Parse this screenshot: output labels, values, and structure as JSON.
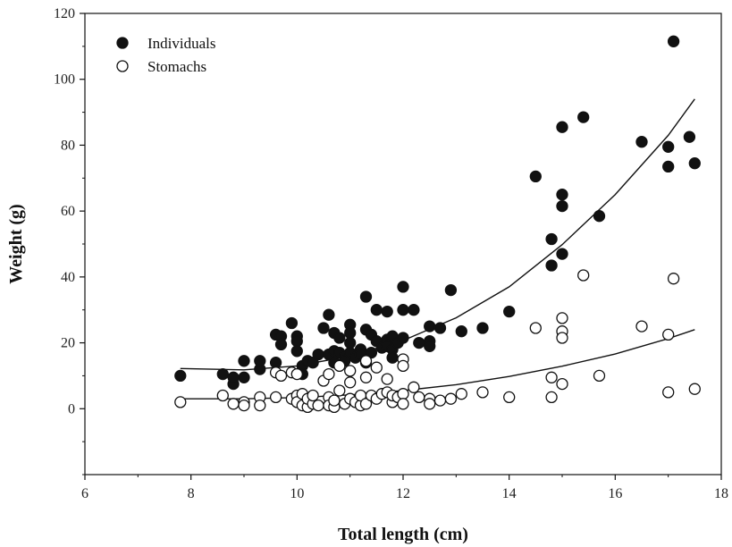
{
  "chart_data": {
    "type": "scatter",
    "title": "",
    "xlabel": "Total length (cm)",
    "ylabel": "Weight (g)",
    "xlim": [
      6,
      18
    ],
    "ylim": [
      -20,
      120
    ],
    "xticks": [
      6,
      8,
      10,
      12,
      14,
      16,
      18
    ],
    "yticks": [
      0,
      20,
      40,
      60,
      80,
      100,
      120
    ],
    "grid": false,
    "legend_position": "top-left",
    "series": [
      {
        "name": "Individuals",
        "marker": "filled-circle",
        "color": "#111111",
        "points": [
          [
            7.8,
            10
          ],
          [
            8.6,
            10.5
          ],
          [
            8.8,
            7.5
          ],
          [
            8.8,
            9.5
          ],
          [
            9.0,
            9.5
          ],
          [
            9.0,
            14.5
          ],
          [
            9.3,
            12
          ],
          [
            9.3,
            14.5
          ],
          [
            9.6,
            14
          ],
          [
            9.6,
            22.5
          ],
          [
            9.7,
            22
          ],
          [
            9.7,
            19.5
          ],
          [
            9.9,
            26
          ],
          [
            10.0,
            22
          ],
          [
            10.0,
            20.5
          ],
          [
            10.0,
            17.5
          ],
          [
            10.1,
            13
          ],
          [
            10.1,
            10.5
          ],
          [
            10.2,
            14.5
          ],
          [
            10.3,
            14
          ],
          [
            10.4,
            16.5
          ],
          [
            10.5,
            24.5
          ],
          [
            10.6,
            28.5
          ],
          [
            10.6,
            16.5
          ],
          [
            10.7,
            23
          ],
          [
            10.7,
            17.5
          ],
          [
            10.7,
            14
          ],
          [
            10.8,
            21.5
          ],
          [
            10.8,
            17
          ],
          [
            10.9,
            16
          ],
          [
            10.9,
            14.5
          ],
          [
            11.0,
            25.5
          ],
          [
            11.0,
            23
          ],
          [
            11.0,
            20
          ],
          [
            11.0,
            17
          ],
          [
            11.1,
            15.5
          ],
          [
            11.2,
            18
          ],
          [
            11.2,
            16.5
          ],
          [
            11.3,
            34
          ],
          [
            11.3,
            24
          ],
          [
            11.3,
            14
          ],
          [
            11.4,
            22.5
          ],
          [
            11.4,
            17
          ],
          [
            11.5,
            30
          ],
          [
            11.5,
            20.5
          ],
          [
            11.6,
            18.5
          ],
          [
            11.7,
            29.5
          ],
          [
            11.7,
            21
          ],
          [
            11.7,
            19
          ],
          [
            11.8,
            22
          ],
          [
            11.8,
            18
          ],
          [
            11.8,
            15.5
          ],
          [
            11.9,
            20
          ],
          [
            12.0,
            37
          ],
          [
            12.0,
            30
          ],
          [
            12.0,
            21.5
          ],
          [
            12.2,
            30
          ],
          [
            12.3,
            20
          ],
          [
            12.5,
            25
          ],
          [
            12.5,
            20.5
          ],
          [
            12.5,
            19
          ],
          [
            12.7,
            24.5
          ],
          [
            12.9,
            36
          ],
          [
            13.1,
            23.5
          ],
          [
            13.5,
            24.5
          ],
          [
            14.0,
            29.5
          ],
          [
            14.5,
            70.5
          ],
          [
            14.8,
            51.5
          ],
          [
            14.8,
            43.5
          ],
          [
            15.0,
            85.5
          ],
          [
            15.0,
            65
          ],
          [
            15.0,
            61.5
          ],
          [
            15.0,
            47
          ],
          [
            15.4,
            88.5
          ],
          [
            15.7,
            58.5
          ],
          [
            16.5,
            81
          ],
          [
            17.0,
            79.5
          ],
          [
            17.0,
            73.5
          ],
          [
            17.1,
            111.5
          ],
          [
            17.4,
            82.5
          ],
          [
            17.5,
            74.5
          ]
        ]
      },
      {
        "name": "Stomachs",
        "marker": "open-circle",
        "color": "#111111",
        "points": [
          [
            7.8,
            2
          ],
          [
            8.6,
            4
          ],
          [
            8.8,
            1.5
          ],
          [
            9.0,
            2
          ],
          [
            9.0,
            1
          ],
          [
            9.3,
            3.5
          ],
          [
            9.3,
            1
          ],
          [
            9.6,
            3.5
          ],
          [
            9.6,
            11
          ],
          [
            9.7,
            10
          ],
          [
            9.9,
            11
          ],
          [
            9.9,
            3
          ],
          [
            10.0,
            10.5
          ],
          [
            10.0,
            4
          ],
          [
            10.0,
            2
          ],
          [
            10.1,
            1
          ],
          [
            10.1,
            4.5
          ],
          [
            10.2,
            0.5
          ],
          [
            10.2,
            3
          ],
          [
            10.3,
            1.5
          ],
          [
            10.3,
            4
          ],
          [
            10.4,
            1
          ],
          [
            10.5,
            8.5
          ],
          [
            10.6,
            10.5
          ],
          [
            10.6,
            3.5
          ],
          [
            10.6,
            1
          ],
          [
            10.7,
            0.5
          ],
          [
            10.7,
            2.5
          ],
          [
            10.8,
            5.5
          ],
          [
            10.8,
            13
          ],
          [
            10.9,
            1.5
          ],
          [
            11.0,
            11.5
          ],
          [
            11.0,
            8
          ],
          [
            11.0,
            3
          ],
          [
            11.1,
            2
          ],
          [
            11.2,
            1
          ],
          [
            11.2,
            4
          ],
          [
            11.3,
            9.5
          ],
          [
            11.3,
            1.5
          ],
          [
            11.3,
            14.5
          ],
          [
            11.4,
            4
          ],
          [
            11.5,
            3
          ],
          [
            11.5,
            12.5
          ],
          [
            11.6,
            4.5
          ],
          [
            11.7,
            9
          ],
          [
            11.7,
            5
          ],
          [
            11.8,
            2
          ],
          [
            11.8,
            4
          ],
          [
            11.9,
            3.5
          ],
          [
            12.0,
            15
          ],
          [
            12.0,
            13
          ],
          [
            12.0,
            4.5
          ],
          [
            12.0,
            1.5
          ],
          [
            12.2,
            6.5
          ],
          [
            12.3,
            3.5
          ],
          [
            12.5,
            3
          ],
          [
            12.5,
            1.5
          ],
          [
            12.7,
            2.5
          ],
          [
            12.9,
            3
          ],
          [
            13.1,
            4.5
          ],
          [
            13.5,
            5
          ],
          [
            14.0,
            3.5
          ],
          [
            14.5,
            24.5
          ],
          [
            14.8,
            9.5
          ],
          [
            14.8,
            3.5
          ],
          [
            15.0,
            27.5
          ],
          [
            15.0,
            23.5
          ],
          [
            15.0,
            21.5
          ],
          [
            15.0,
            7.5
          ],
          [
            15.4,
            40.5
          ],
          [
            15.7,
            10
          ],
          [
            16.5,
            25
          ],
          [
            17.0,
            22.5
          ],
          [
            17.0,
            5
          ],
          [
            17.1,
            39.5
          ],
          [
            17.5,
            6
          ]
        ]
      }
    ],
    "fits": [
      {
        "series": "Individuals",
        "points": [
          [
            7.8,
            12.2
          ],
          [
            9.0,
            11.8
          ],
          [
            10.0,
            13.0
          ],
          [
            11.0,
            16.0
          ],
          [
            12.0,
            20.7
          ],
          [
            13.0,
            27.6
          ],
          [
            14.0,
            37.0
          ],
          [
            15.0,
            49.8
          ],
          [
            16.0,
            65.0
          ],
          [
            17.0,
            83.0
          ],
          [
            17.5,
            94.0
          ]
        ]
      },
      {
        "series": "Stomachs",
        "points": [
          [
            7.8,
            3.0
          ],
          [
            9.0,
            3.0
          ],
          [
            10.0,
            3.4
          ],
          [
            11.0,
            4.2
          ],
          [
            12.0,
            5.5
          ],
          [
            13.0,
            7.3
          ],
          [
            14.0,
            9.8
          ],
          [
            15.0,
            12.9
          ],
          [
            16.0,
            16.6
          ],
          [
            17.0,
            21.3
          ],
          [
            17.5,
            24.0
          ]
        ]
      }
    ]
  }
}
